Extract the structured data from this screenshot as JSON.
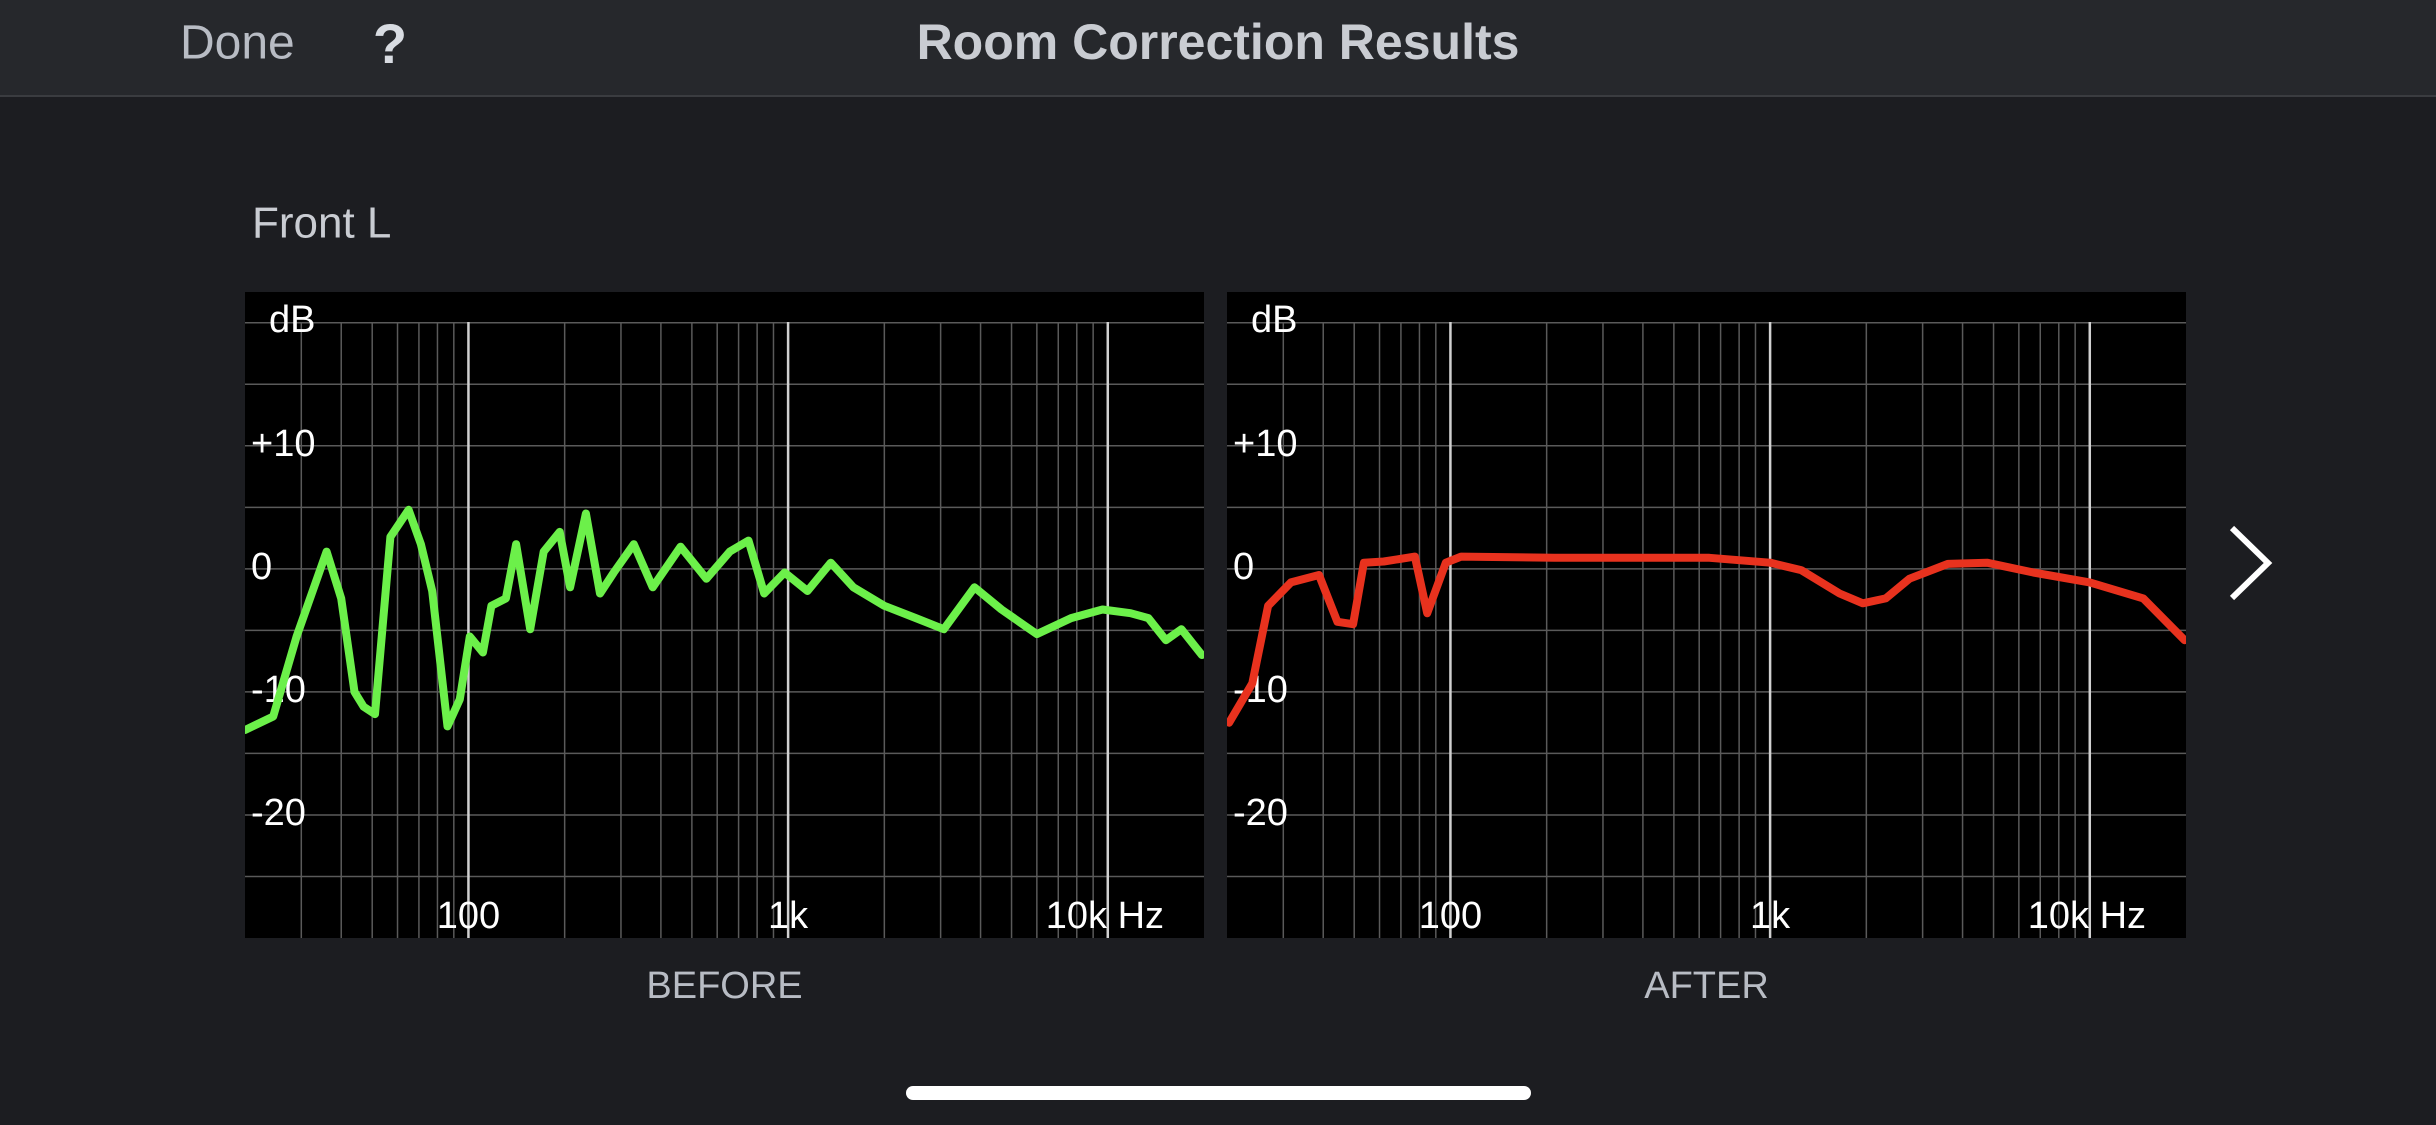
{
  "header": {
    "done": "Done",
    "help": "?",
    "title": "Room Correction Results"
  },
  "section": "Front L",
  "chart_data": [
    {
      "type": "line",
      "caption": "BEFORE",
      "ylabel": "dB",
      "xscale": "log",
      "xlim": [
        20,
        20000
      ],
      "ylim": [
        -30,
        22.5
      ],
      "xticks": [
        100,
        {
          "value": 1000,
          "label": "1k"
        },
        {
          "value": 10000,
          "label": "10k Hz"
        }
      ],
      "xgrid": [
        30,
        40,
        50,
        60,
        70,
        80,
        90,
        200,
        300,
        400,
        500,
        600,
        700,
        800,
        900,
        2000,
        3000,
        4000,
        5000,
        6000,
        7000,
        8000,
        9000
      ],
      "yticks": [
        {
          "value": 10,
          "label": "+10"
        },
        0,
        -10,
        -20
      ],
      "ygrid": [
        -25,
        -15,
        -5,
        5,
        15,
        20
      ],
      "x": [
        20,
        24.5,
        29,
        36,
        40,
        44,
        47,
        51,
        57,
        65,
        71,
        77,
        86,
        94,
        101,
        111,
        118,
        131,
        141,
        156,
        172,
        193,
        208,
        233,
        258,
        285,
        329,
        377,
        461,
        555,
        657,
        752,
        842,
        975,
        1150,
        1360,
        1600,
        2000,
        2510,
        3070,
        3830,
        4650,
        6000,
        7680,
        9630,
        11780,
        13400,
        15200,
        17000,
        19700
      ],
      "series": [
        {
          "color": "#6cf04a",
          "values": [
            -13.1,
            -12,
            -5.5,
            1.4,
            -2.4,
            -10,
            -11.2,
            -11.8,
            2.6,
            4.8,
            2,
            -1.8,
            -12.8,
            -10.6,
            -5.5,
            -6.8,
            -3,
            -2.4,
            2,
            -4.9,
            1.4,
            3,
            -1.5,
            4.5,
            -2,
            -0.3,
            2,
            -1.5,
            1.8,
            -0.8,
            1.4,
            2.3,
            -2,
            -0.3,
            -1.8,
            0.5,
            -1.5,
            -3,
            -4,
            -4.9,
            -1.5,
            -3.3,
            -5.3,
            -4,
            -3.3,
            -3.6,
            -4,
            -5.8,
            -4.9,
            -7
          ]
        }
      ]
    },
    {
      "type": "line",
      "caption": "AFTER",
      "ylabel": "dB",
      "xscale": "log",
      "xlim": [
        20,
        20000
      ],
      "ylim": [
        -30,
        22.5
      ],
      "xticks": [
        100,
        {
          "value": 1000,
          "label": "1k"
        },
        {
          "value": 10000,
          "label": "10k Hz"
        }
      ],
      "xgrid": [
        30,
        40,
        50,
        60,
        70,
        80,
        90,
        200,
        300,
        400,
        500,
        600,
        700,
        800,
        900,
        2000,
        3000,
        4000,
        5000,
        6000,
        7000,
        8000,
        9000
      ],
      "yticks": [
        {
          "value": 10,
          "label": "+10"
        },
        0,
        -10,
        -20
      ],
      "ygrid": [
        -25,
        -15,
        -5,
        5,
        15,
        20
      ],
      "x": [
        20.3,
        24,
        26.9,
        31.7,
        38.8,
        44.3,
        49.6,
        53.6,
        61.9,
        77.4,
        84.6,
        96.7,
        108,
        211,
        646,
        1000,
        1250,
        1650,
        1950,
        2300,
        2730,
        3600,
        4770,
        6660,
        10000,
        14700,
        19800
      ],
      "series": [
        {
          "color": "#e8321e",
          "values": [
            -12.5,
            -9.3,
            -3,
            -1.1,
            -0.5,
            -4.3,
            -4.5,
            0.5,
            0.6,
            1,
            -3.6,
            0.5,
            1,
            0.9,
            0.9,
            0.5,
            -0.1,
            -2,
            -2.8,
            -2.4,
            -0.8,
            0.4,
            0.5,
            -0.3,
            -1.1,
            -2.4,
            -5.8
          ]
        }
      ]
    }
  ]
}
